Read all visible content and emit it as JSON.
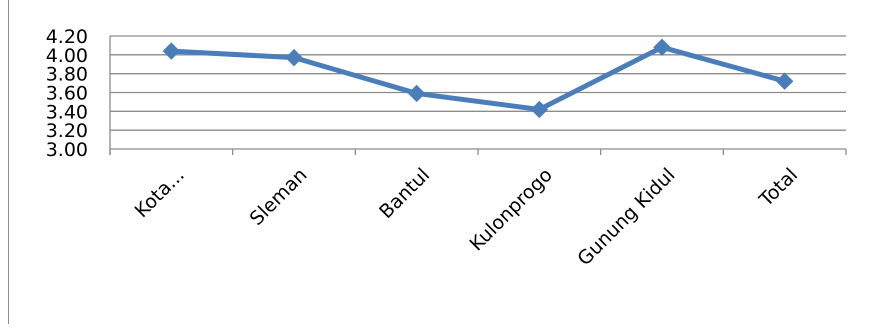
{
  "chart_data": {
    "type": "line",
    "categories": [
      "Kota...",
      "Sleman",
      "Bantul",
      "Kulonprogo",
      "Gunung Kidul",
      "Total"
    ],
    "series": [
      {
        "values": [
          4.04,
          3.97,
          3.59,
          3.42,
          4.08,
          3.72
        ]
      }
    ],
    "ylim": [
      3.0,
      4.2
    ],
    "yticks": [
      "3.00",
      "3.20",
      "3.40",
      "3.60",
      "3.80",
      "4.00",
      "4.20"
    ],
    "title": "",
    "xlabel": "",
    "ylabel": "",
    "grid": true,
    "legend": "none",
    "colors": {
      "line": "#4a7ebb",
      "grid": "#8c8c8c",
      "axis": "#8c8c8c"
    }
  }
}
